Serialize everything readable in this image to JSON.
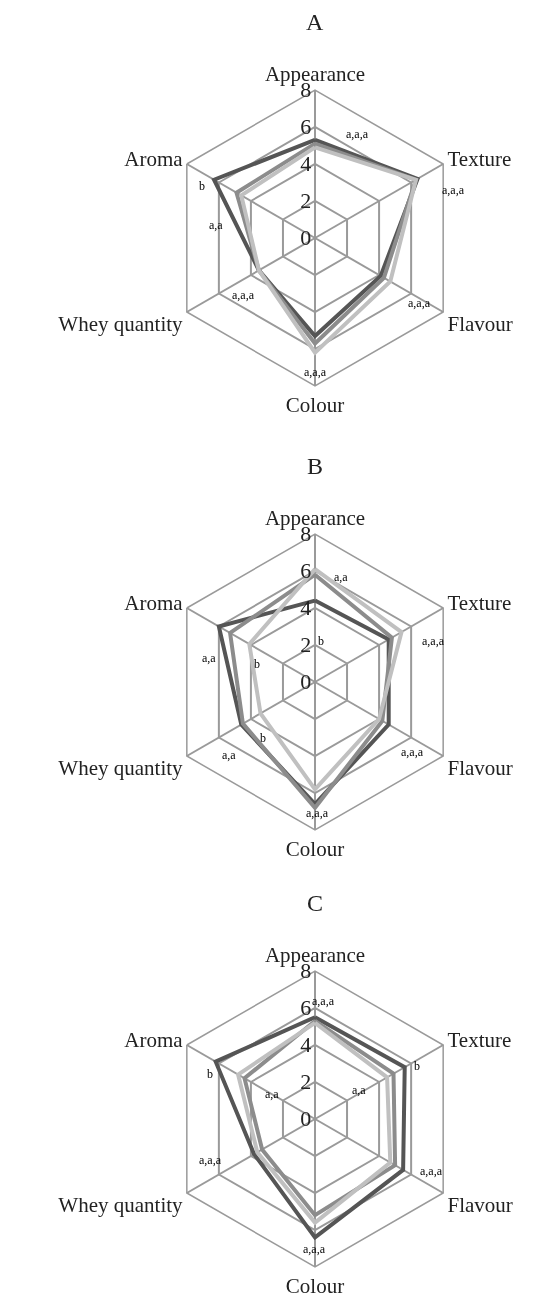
{
  "chart_data": [
    {
      "type": "radar",
      "title": "A",
      "categories": [
        "Appearance",
        "Texture",
        "Flavour",
        "Colour",
        "Whey quantity",
        "Aroma"
      ],
      "ylim": [
        0,
        8
      ],
      "yticks": [
        0,
        2,
        4,
        6,
        8
      ],
      "grid": true,
      "marker": "none",
      "line_style": "solid",
      "series": [
        {
          "color": "#555555",
          "values": [
            5.3,
            6.4,
            4.1,
            5.3,
            3.5,
            6.3
          ]
        },
        {
          "color": "#8c8c8c",
          "values": [
            5.1,
            6.3,
            4.3,
            5.7,
            3.5,
            4.9
          ]
        },
        {
          "color": "#c0c0c0",
          "values": [
            4.9,
            6.3,
            4.7,
            6.2,
            3.5,
            4.6
          ]
        }
      ],
      "annotations": [
        "a,a,a",
        "a,a,a",
        "a,a,a",
        "a,a,a",
        "a,a,a",
        "b",
        "a,a"
      ]
    },
    {
      "type": "radar",
      "title": "B",
      "categories": [
        "Appearance",
        "Texture",
        "Flavour",
        "Colour",
        "Whey quantity",
        "Aroma"
      ],
      "ylim": [
        0,
        8
      ],
      "yticks": [
        0,
        2,
        4,
        6,
        8
      ],
      "grid": true,
      "marker": "none",
      "line_style": "solid",
      "series": [
        {
          "color": "#555555",
          "values": [
            4.4,
            4.6,
            4.6,
            6.6,
            4.6,
            6.0
          ]
        },
        {
          "color": "#8c8c8c",
          "values": [
            5.8,
            4.8,
            4.2,
            6.8,
            4.5,
            5.3
          ]
        },
        {
          "color": "#c0c0c0",
          "values": [
            6.1,
            5.4,
            4.0,
            5.8,
            3.4,
            4.1
          ]
        }
      ],
      "annotations": [
        "a,a",
        "b",
        "a,a,a",
        "a,a,a",
        "a,a,a",
        "a,a",
        "b",
        "a,a",
        "b"
      ]
    },
    {
      "type": "radar",
      "title": "C",
      "categories": [
        "Appearance",
        "Texture",
        "Flavour",
        "Colour",
        "Whey quantity",
        "Aroma"
      ],
      "ylim": [
        0,
        8
      ],
      "yticks": [
        0,
        2,
        4,
        6,
        8
      ],
      "grid": true,
      "marker": "none",
      "line_style": "solid",
      "series": [
        {
          "color": "#555555",
          "values": [
            5.5,
            5.6,
            5.5,
            6.4,
            3.8,
            6.2
          ]
        },
        {
          "color": "#8c8c8c",
          "values": [
            5.3,
            4.9,
            5.0,
            5.2,
            3.3,
            4.4
          ]
        },
        {
          "color": "#c0c0c0",
          "values": [
            5.2,
            4.5,
            4.7,
            5.6,
            3.6,
            4.8
          ]
        }
      ],
      "annotations": [
        "a,a,a",
        "b",
        "a,a",
        "a,a,a",
        "a,a,a",
        "a,a,a",
        "b",
        "a,a"
      ]
    }
  ]
}
